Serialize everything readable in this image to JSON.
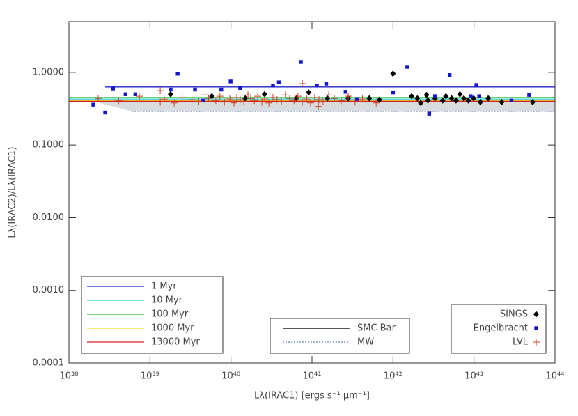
{
  "chart_data": {
    "type": "scatter",
    "xlabel": "Lλ(IRAC1) [ergs s⁻¹ μm⁻¹]",
    "ylabel": "Lλ(IRAC2)/Lλ(IRAC1)",
    "xlog": true,
    "ylog": true,
    "xlim": [
      1e+38,
      1e+44
    ],
    "ylim": [
      0.0001,
      5
    ],
    "xticks": [
      {
        "value": 1e+38,
        "label": "10³⁸"
      },
      {
        "value": 1e+39,
        "label": "10³⁹"
      },
      {
        "value": 1e+40,
        "label": "10⁴⁰"
      },
      {
        "value": 1e+41,
        "label": "10⁴¹"
      },
      {
        "value": 1e+42,
        "label": "10⁴²"
      },
      {
        "value": 1e+43,
        "label": "10⁴³"
      },
      {
        "value": 1e+44,
        "label": "10⁴⁴"
      }
    ],
    "yticks": [
      {
        "value": 0.0001,
        "label": "0.0001"
      },
      {
        "value": 0.001,
        "label": "0.0010"
      },
      {
        "value": 0.01,
        "label": "0.0100"
      },
      {
        "value": 0.1,
        "label": "0.1000"
      },
      {
        "value": 1,
        "label": "1.0000"
      }
    ],
    "model_lines_legend": "lower left",
    "model_lines": [
      {
        "name": "1 Myr",
        "color": "#2424c8",
        "x": [
          2.8e+38,
          1e+44
        ],
        "values": [
          0.63,
          0.63
        ]
      },
      {
        "name": "10 Myr",
        "color": "#30c8d0",
        "x": [
          1e+38,
          1e+44
        ],
        "values": [
          0.43,
          0.43
        ]
      },
      {
        "name": "100 Myr",
        "color": "#20b820",
        "x": [
          1e+38,
          1e+44
        ],
        "values": [
          0.45,
          0.45
        ]
      },
      {
        "name": "1000 Myr",
        "color": "#e0e020",
        "x": [
          1e+38,
          1e+44
        ],
        "values": [
          0.41,
          0.41
        ]
      },
      {
        "name": "13000 Myr",
        "color": "#d82020",
        "x": [
          1e+38,
          1e+44
        ],
        "values": [
          0.4,
          0.4
        ]
      }
    ],
    "extinction_legend": "lower center",
    "extinction_lines": [
      {
        "name": "SMC Bar",
        "color": "#555555",
        "dash": "solid",
        "x": [
          2e+38,
          1e+44
        ],
        "values": [
          0.4,
          0.4
        ]
      },
      {
        "name": "MW",
        "color": "#4060a0",
        "dash": "dotted",
        "x": [
          6e+38,
          1e+44
        ],
        "values": [
          0.29,
          0.29
        ]
      }
    ],
    "extinction_fill": "#d8dcdf",
    "legend": "lower right",
    "series": [
      {
        "name": "SINGS",
        "color": "#000000",
        "marker": "diamond",
        "x": [
          1.8e+39,
          5.8e+39,
          1.5e+40,
          2.6e+40,
          6.4e+40,
          9.1e+40,
          1.55e+41,
          2.8e+41,
          5.1e+41,
          6.8e+41,
          1e+42,
          1.7e+42,
          2e+42,
          2.7e+42,
          3.3e+42,
          4.1e+42,
          4.5e+42,
          5.3e+42,
          6e+42,
          6.7e+42,
          7.5e+42,
          8.5e+42,
          9.9e+42,
          1.2e+43,
          1.5e+43,
          2.2e+43,
          5.3e+43,
          2.2e+42,
          2.6e+42
        ],
        "values": [
          0.5,
          0.47,
          0.44,
          0.5,
          0.44,
          0.53,
          0.44,
          0.44,
          0.44,
          0.42,
          0.96,
          0.47,
          0.44,
          0.41,
          0.44,
          0.41,
          0.47,
          0.44,
          0.41,
          0.5,
          0.44,
          0.41,
          0.44,
          0.39,
          0.44,
          0.39,
          0.39,
          0.38,
          0.49
        ]
      },
      {
        "name": "Engelbracht",
        "color": "#1414c8",
        "marker": "square",
        "x": [
          2e+38,
          2.8e+38,
          3.5e+38,
          5e+38,
          6.6e+38,
          1.8e+39,
          2.2e+39,
          3.6e+39,
          4.5e+39,
          7.6e+39,
          9.9e+39,
          1.3e+40,
          3.3e+40,
          3.9e+40,
          7.3e+40,
          1.15e+41,
          1.5e+41,
          2.6e+41,
          3.6e+41,
          1e+42,
          1.5e+42,
          2.8e+42,
          3.3e+42,
          5e+42,
          9.1e+42,
          1.07e+43,
          1.16e+43,
          2.9e+43,
          4.8e+43
        ],
        "values": [
          0.36,
          0.28,
          0.6,
          0.5,
          0.5,
          0.58,
          0.96,
          0.58,
          0.41,
          0.58,
          0.75,
          0.61,
          0.66,
          0.73,
          1.39,
          0.66,
          0.7,
          0.54,
          0.43,
          0.53,
          1.19,
          0.27,
          0.47,
          0.92,
          0.47,
          0.67,
          0.47,
          0.41,
          0.49
        ]
      },
      {
        "name": "LVL",
        "color": "#c84020",
        "marker": "plus",
        "x": [
          2.3e+38,
          4.1e+38,
          7.4e+38,
          1.34e+39,
          1.5e+39,
          1.99e+39,
          2.5e+39,
          3.3e+39,
          4e+39,
          4.8e+39,
          5.3e+39,
          6.5e+39,
          7.3e+39,
          8.3e+39,
          9.7e+39,
          1.09e+40,
          1.18e+40,
          1.3e+40,
          1.44e+40,
          1.62e+40,
          1.75e+40,
          1.94e+40,
          2.14e+40,
          2.41e+40,
          2.61e+40,
          2.94e+40,
          3.3e+40,
          3.7e+40,
          4.2e+40,
          4.7e+40,
          5.3e+40,
          6e+40,
          6.7e+40,
          7.6e+40,
          8.6e+40,
          9.6e+40,
          1.08e+41,
          1.22e+41,
          1.37e+41,
          1.61e+41,
          1.89e+41,
          2.3e+41,
          2.8e+41,
          3.4e+41,
          4.2e+41,
          6.2e+41,
          1.34e+39,
          7.6e+40,
          1.2e+41
        ],
        "values": [
          0.44,
          0.41,
          0.47,
          0.39,
          0.43,
          0.38,
          0.45,
          0.42,
          0.4,
          0.49,
          0.44,
          0.41,
          0.47,
          0.39,
          0.43,
          0.38,
          0.45,
          0.42,
          0.4,
          0.49,
          0.44,
          0.41,
          0.47,
          0.39,
          0.43,
          0.38,
          0.45,
          0.42,
          0.4,
          0.49,
          0.44,
          0.41,
          0.47,
          0.39,
          0.43,
          0.38,
          0.45,
          0.42,
          0.4,
          0.49,
          0.44,
          0.41,
          0.47,
          0.39,
          0.43,
          0.38,
          0.56,
          0.7,
          0.34
        ]
      }
    ]
  }
}
